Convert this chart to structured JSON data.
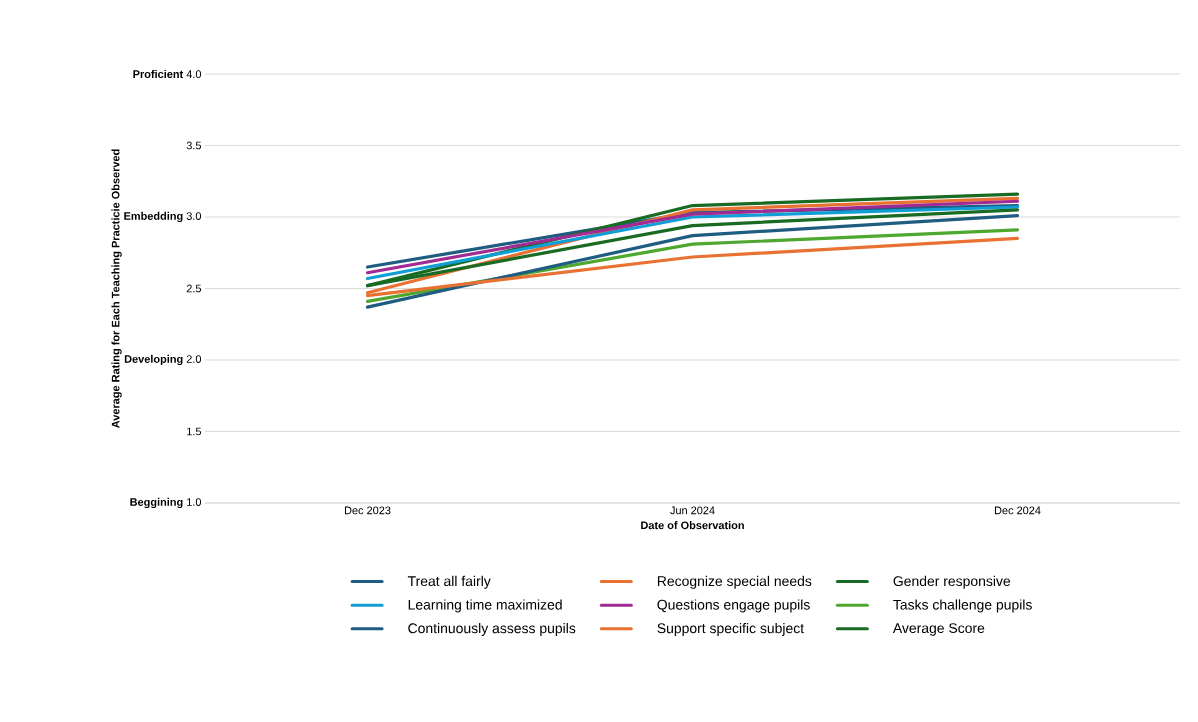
{
  "chart_data": {
    "type": "line",
    "xlabel": "Date of Observation",
    "ylabel": "Average Rating for Each Teaching Practicie Observed",
    "categories": [
      "Dec 2023",
      "Jun 2024",
      "Dec 2024"
    ],
    "series": [
      {
        "name": "Treat all fairly",
        "color": "#1f5c82",
        "values": [
          2.65,
          3.03,
          3.08
        ]
      },
      {
        "name": "Recognize special needs",
        "color": "#e97132",
        "values": [
          2.47,
          3.05,
          3.13
        ]
      },
      {
        "name": "Gender responsive",
        "color": "#196b24",
        "values": [
          2.52,
          3.08,
          3.16
        ]
      },
      {
        "name": "Learning time maximized",
        "color": "#0f9ed5",
        "values": [
          2.57,
          3.0,
          3.07
        ]
      },
      {
        "name": "Questions engage pupils",
        "color": "#a02b93",
        "values": [
          2.61,
          3.02,
          3.11
        ]
      },
      {
        "name": "Tasks challenge pupils",
        "color": "#4ea72e",
        "values": [
          2.41,
          2.81,
          2.91
        ]
      },
      {
        "name": "Continuously assess pupils",
        "color": "#1f5c82",
        "values": [
          2.37,
          2.87,
          3.01
        ]
      },
      {
        "name": "Support specific subject",
        "color": "#e97132",
        "values": [
          2.45,
          2.72,
          2.85
        ]
      },
      {
        "name": "Average Score",
        "color": "#196b24",
        "values": [
          2.52,
          2.94,
          3.05
        ]
      }
    ],
    "ylim": [
      1.0,
      4.0
    ],
    "yticks": [
      {
        "value": 1.0,
        "label": "**Beggining** 1.0"
      },
      1.5,
      {
        "value": 2.0,
        "label": "**Developing** 2.0"
      },
      2.5,
      {
        "value": 3.0,
        "label": "**Embedding** 3.0"
      },
      3.5,
      {
        "value": 4.0,
        "label": "**Proficient** 4.0"
      }
    ],
    "grid": "y",
    "legend": "bottom",
    "marker": "none",
    "line_style": "solid"
  }
}
